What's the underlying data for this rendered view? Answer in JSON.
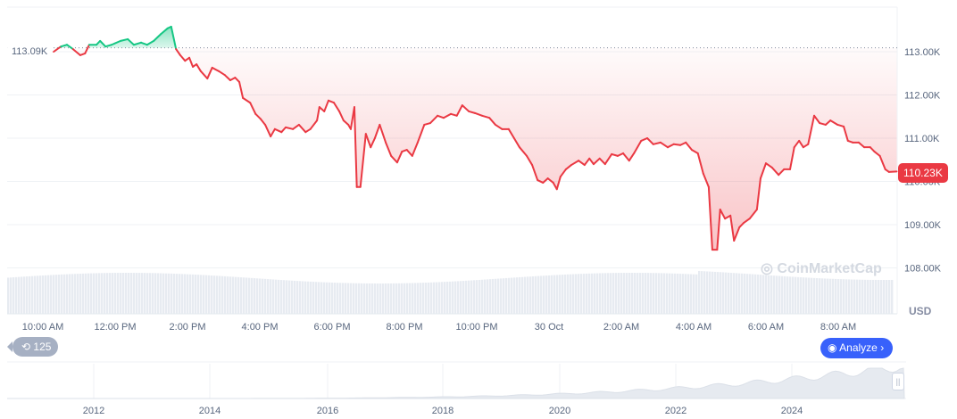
{
  "chart_data": {
    "type": "line",
    "ylabel": "USD",
    "y_ticks": [
      "108.00K",
      "109.00K",
      "110.00K",
      "111.00K",
      "112.00K",
      "113.00K"
    ],
    "ylim": [
      107.0,
      114.0
    ],
    "x_ticks": [
      "10:00 AM",
      "12:00 PM",
      "2:00 PM",
      "4:00 PM",
      "6:00 PM",
      "8:00 PM",
      "10:00 PM",
      "30 Oct",
      "2:00 AM",
      "4:00 AM",
      "6:00 AM",
      "8:00 AM"
    ],
    "reference_value": 113.09,
    "reference_label": "113.09K",
    "current_value": 110.23,
    "current_label": "110.23K",
    "colors": {
      "up": "#16c784",
      "down": "#ea3943",
      "grid": "#eff2f5",
      "volume": "#e3e8ee",
      "accent": "#3861fb"
    },
    "series": [
      {
        "points": [
          [
            "10:18",
            113.0
          ],
          [
            "10:30",
            113.12
          ],
          [
            "10:40",
            113.16
          ],
          [
            "10:50",
            113.06
          ],
          [
            "11:02",
            112.92
          ],
          [
            "11:10",
            112.96
          ],
          [
            "11:17",
            113.16
          ],
          [
            "11:29",
            113.16
          ],
          [
            "11:35",
            113.25
          ],
          [
            "11:44",
            113.12
          ],
          [
            "11:54",
            113.16
          ],
          [
            "12:09",
            113.25
          ],
          [
            "12:21",
            113.29
          ],
          [
            "12:31",
            113.16
          ],
          [
            "12:43",
            113.21
          ],
          [
            "12:53",
            113.16
          ],
          [
            "13:04",
            113.25
          ],
          [
            "13:16",
            113.41
          ],
          [
            "13:27",
            113.54
          ],
          [
            "13:33",
            113.58
          ],
          [
            "13:41",
            113.06
          ],
          [
            "13:48",
            112.92
          ],
          [
            "13:56",
            112.79
          ],
          [
            "14:03",
            112.86
          ],
          [
            "14:09",
            112.65
          ],
          [
            "14:15",
            112.71
          ],
          [
            "14:22",
            112.55
          ],
          [
            "14:33",
            112.38
          ],
          [
            "14:41",
            112.63
          ],
          [
            "14:52",
            112.55
          ],
          [
            "15:02",
            112.46
          ],
          [
            "15:11",
            112.34
          ],
          [
            "15:19",
            112.4
          ],
          [
            "15:26",
            112.3
          ],
          [
            "15:32",
            111.93
          ],
          [
            "15:44",
            111.82
          ],
          [
            "15:53",
            111.56
          ],
          [
            "16:01",
            111.45
          ],
          [
            "16:09",
            111.31
          ],
          [
            "16:18",
            111.04
          ],
          [
            "16:25",
            111.21
          ],
          [
            "16:36",
            111.14
          ],
          [
            "16:43",
            111.25
          ],
          [
            "16:55",
            111.21
          ],
          [
            "17:05",
            111.31
          ],
          [
            "17:16",
            111.14
          ],
          [
            "17:24",
            111.21
          ],
          [
            "17:35",
            111.41
          ],
          [
            "17:39",
            111.72
          ],
          [
            "17:47",
            111.62
          ],
          [
            "17:54",
            111.87
          ],
          [
            "18:03",
            111.82
          ],
          [
            "18:12",
            111.62
          ],
          [
            "18:19",
            111.41
          ],
          [
            "18:27",
            111.31
          ],
          [
            "18:31",
            111.21
          ],
          [
            "18:37",
            111.72
          ],
          [
            "18:41",
            109.87
          ],
          [
            "18:47",
            109.87
          ],
          [
            "18:56",
            111.1
          ],
          [
            "19:04",
            110.79
          ],
          [
            "19:11",
            111.0
          ],
          [
            "19:19",
            111.31
          ],
          [
            "19:29",
            110.9
          ],
          [
            "19:38",
            110.59
          ],
          [
            "19:48",
            110.44
          ],
          [
            "19:56",
            110.69
          ],
          [
            "20:04",
            110.73
          ],
          [
            "20:13",
            110.59
          ],
          [
            "20:22",
            110.9
          ],
          [
            "20:33",
            111.31
          ],
          [
            "20:43",
            111.35
          ],
          [
            "20:55",
            111.52
          ],
          [
            "21:05",
            111.47
          ],
          [
            "21:17",
            111.56
          ],
          [
            "21:27",
            111.52
          ],
          [
            "21:36",
            111.76
          ],
          [
            "21:47",
            111.62
          ],
          [
            "21:57",
            111.58
          ],
          [
            "22:09",
            111.52
          ],
          [
            "22:21",
            111.47
          ],
          [
            "22:31",
            111.31
          ],
          [
            "22:42",
            111.21
          ],
          [
            "22:53",
            111.21
          ],
          [
            "23:02",
            111.0
          ],
          [
            "23:11",
            110.79
          ],
          [
            "23:23",
            110.59
          ],
          [
            "23:32",
            110.38
          ],
          [
            "23:41",
            110.03
          ],
          [
            "23:50",
            109.97
          ],
          [
            "23:58",
            110.07
          ],
          [
            "00:07",
            109.97
          ],
          [
            "00:13",
            109.82
          ],
          [
            "00:19",
            110.11
          ],
          [
            "00:28",
            110.28
          ],
          [
            "00:37",
            110.38
          ],
          [
            "00:49",
            110.48
          ],
          [
            "00:59",
            110.38
          ],
          [
            "01:07",
            110.53
          ],
          [
            "01:14",
            110.4
          ],
          [
            "01:24",
            110.53
          ],
          [
            "01:33",
            110.4
          ],
          [
            "01:44",
            110.63
          ],
          [
            "01:54",
            110.59
          ],
          [
            "02:03",
            110.65
          ],
          [
            "02:13",
            110.48
          ],
          [
            "02:21",
            110.65
          ],
          [
            "02:33",
            110.94
          ],
          [
            "02:43",
            111.0
          ],
          [
            "02:53",
            110.86
          ],
          [
            "03:05",
            110.9
          ],
          [
            "03:17",
            110.79
          ],
          [
            "03:27",
            110.86
          ],
          [
            "03:38",
            110.84
          ],
          [
            "03:47",
            110.9
          ],
          [
            "03:57",
            110.73
          ],
          [
            "04:07",
            110.65
          ],
          [
            "04:16",
            110.18
          ],
          [
            "04:25",
            109.87
          ],
          [
            "04:31",
            108.42
          ],
          [
            "04:39",
            108.42
          ],
          [
            "04:44",
            109.35
          ],
          [
            "04:52",
            109.14
          ],
          [
            "05:01",
            109.21
          ],
          [
            "05:07",
            108.63
          ],
          [
            "05:16",
            108.94
          ],
          [
            "05:23",
            109.04
          ],
          [
            "05:33",
            109.14
          ],
          [
            "05:45",
            109.35
          ],
          [
            "05:51",
            110.07
          ],
          [
            "06:00",
            110.42
          ],
          [
            "06:10",
            110.32
          ],
          [
            "06:21",
            110.15
          ],
          [
            "06:30",
            110.28
          ],
          [
            "06:40",
            110.28
          ],
          [
            "06:47",
            110.79
          ],
          [
            "06:55",
            110.94
          ],
          [
            "07:02",
            110.79
          ],
          [
            "07:10",
            110.86
          ],
          [
            "07:20",
            111.52
          ],
          [
            "07:29",
            111.35
          ],
          [
            "07:39",
            111.31
          ],
          [
            "07:47",
            111.41
          ],
          [
            "07:59",
            111.31
          ],
          [
            "08:09",
            111.27
          ],
          [
            "08:16",
            110.94
          ],
          [
            "08:24",
            110.9
          ],
          [
            "08:34",
            110.9
          ],
          [
            "08:43",
            110.79
          ],
          [
            "08:53",
            110.79
          ],
          [
            "09:00",
            110.69
          ],
          [
            "09:09",
            110.59
          ],
          [
            "09:18",
            110.28
          ],
          [
            "09:24",
            110.22
          ],
          [
            "09:37",
            110.23
          ]
        ]
      }
    ]
  },
  "navigator": {
    "year_ticks": [
      "2012",
      "2014",
      "2016",
      "2018",
      "2020",
      "2022",
      "2024"
    ],
    "handle_icon": "drag-handle-icon"
  },
  "controls": {
    "history_count": "125",
    "history_icon": "history-icon",
    "analyze_label": "Analyze",
    "analyze_icon": "cmc-logo-icon",
    "chevron": "›"
  },
  "watermark": "CoinMarketCap"
}
